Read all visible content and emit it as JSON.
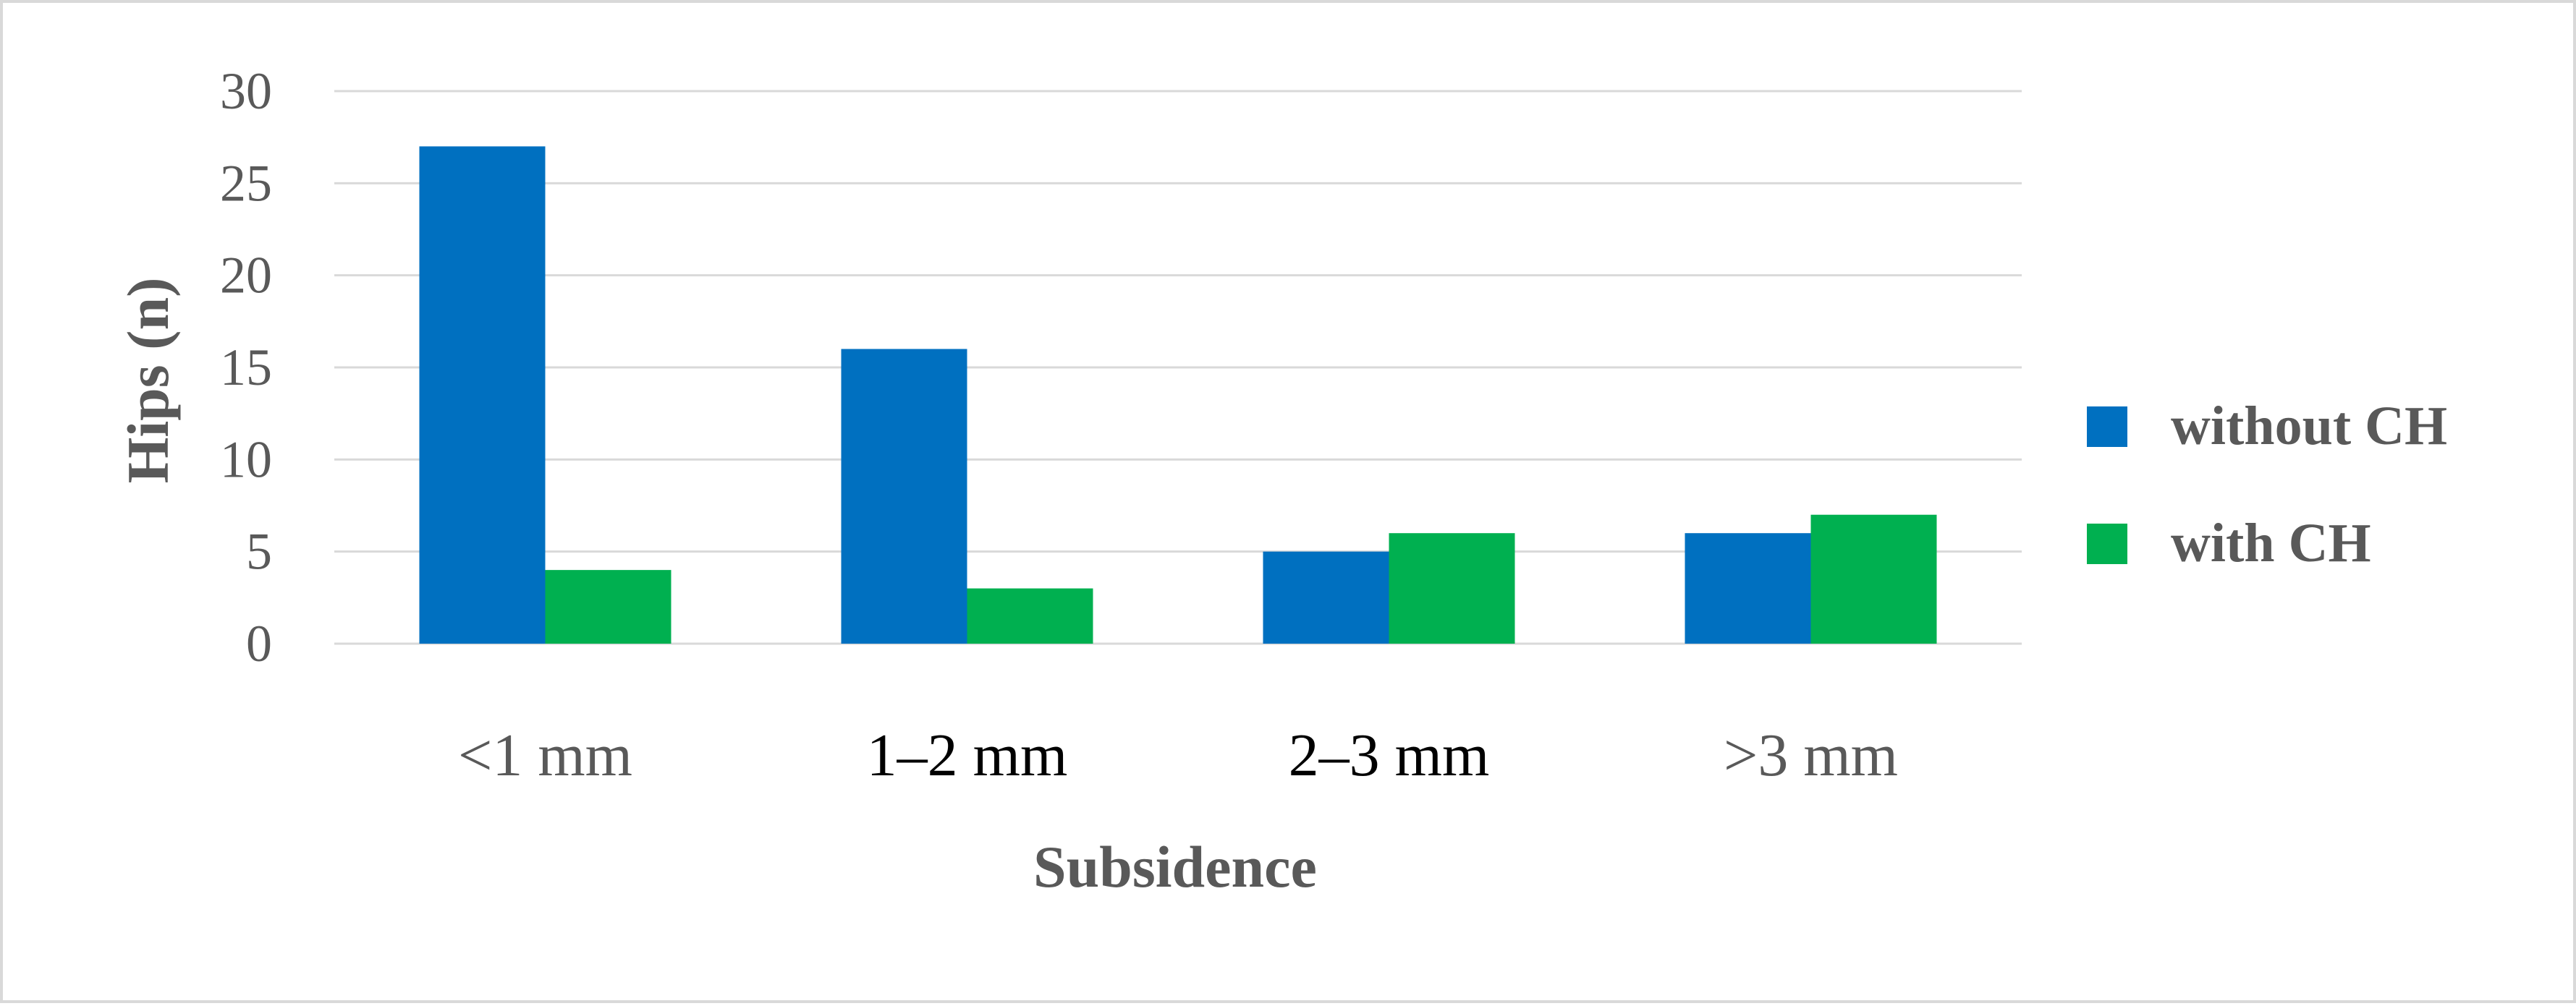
{
  "chart_data": {
    "type": "bar",
    "title": "",
    "xlabel": "Subsidence",
    "ylabel": "Hips (n)",
    "categories": [
      "<1 mm",
      "1–2 mm",
      "2–3 mm",
      ">3 mm"
    ],
    "category_colors": [
      "#595959",
      "#000000",
      "#000000",
      "#595959"
    ],
    "series": [
      {
        "name": "without CH",
        "color": "#0070C0",
        "values": [
          27,
          16,
          5,
          6
        ]
      },
      {
        "name": "with CH",
        "color": "#00B050",
        "values": [
          4,
          3,
          6,
          7
        ]
      }
    ],
    "ylim": [
      0,
      30
    ],
    "yticks": [
      "0",
      "5",
      "10",
      "15",
      "20",
      "25",
      "30"
    ],
    "grid": true,
    "legend_position": "right"
  }
}
